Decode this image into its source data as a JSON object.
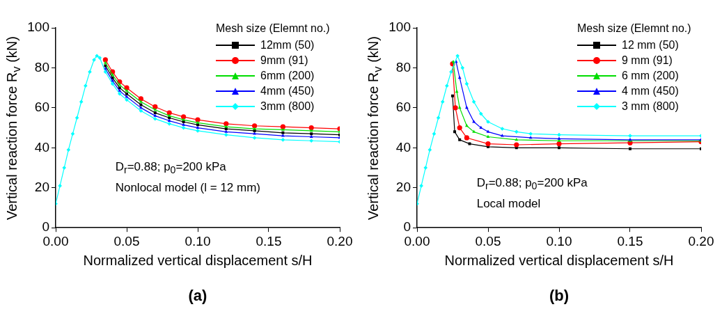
{
  "chart_data": [
    {
      "type": "line",
      "xlabel": "Normalized vertical displacement s/H",
      "ylabel": "Vertical reaction force R$_{v}$ (kN)",
      "legend_title": "Mesh size (Elemnt no.)",
      "legend": "top right",
      "xlim": [
        0,
        0.2
      ],
      "xticks": [
        {
          "value": 0,
          "label": "0.00"
        },
        {
          "value": 0.05,
          "label": "0.05"
        },
        {
          "value": 0.1,
          "label": "0.10"
        },
        {
          "value": 0.15,
          "label": "0.15"
        },
        {
          "value": 0.2,
          "label": "0.20"
        }
      ],
      "ylim": [
        0,
        100
      ],
      "yticks": [
        0,
        20,
        40,
        60,
        80,
        100
      ],
      "annotations": [
        "D$_{r}$=0.88; p$_{0}$=200 kPa",
        "Nonlocal model (l = 12 mm)",
        "(a)"
      ],
      "series": [
        {
          "name": "12mm (50)",
          "color": "#000000",
          "marker": "square",
          "x": [
            0.035,
            0.04,
            0.045,
            0.05,
            0.06,
            0.07,
            0.08,
            0.09,
            0.1,
            0.12,
            0.14,
            0.16,
            0.18,
            0.2
          ],
          "values": [
            81,
            75,
            70,
            67,
            61.5,
            57.5,
            55,
            53,
            51.5,
            49.5,
            48.5,
            47.5,
            47,
            46.5
          ]
        },
        {
          "name": "9mm (91)",
          "color": "#ff0000",
          "marker": "circle",
          "x": [
            0.035,
            0.04,
            0.045,
            0.05,
            0.06,
            0.07,
            0.08,
            0.09,
            0.1,
            0.12,
            0.14,
            0.16,
            0.18,
            0.2
          ],
          "values": [
            84,
            78,
            73,
            70,
            64.5,
            60.5,
            57.5,
            55.5,
            54,
            52,
            51,
            50.5,
            50,
            49.5
          ]
        },
        {
          "name": "6mm (200)",
          "color": "#00dd00",
          "marker": "triangle",
          "x": [
            0.035,
            0.04,
            0.045,
            0.05,
            0.06,
            0.07,
            0.08,
            0.09,
            0.1,
            0.12,
            0.14,
            0.16,
            0.18,
            0.2
          ],
          "values": [
            82.5,
            76.5,
            71.5,
            68.5,
            63,
            59,
            56,
            54,
            52.5,
            50.5,
            49.5,
            49,
            48.5,
            48
          ]
        },
        {
          "name": "4mm (450)",
          "color": "#0000ff",
          "marker": "triangle",
          "x": [
            0.035,
            0.04,
            0.045,
            0.05,
            0.06,
            0.07,
            0.08,
            0.09,
            0.1,
            0.12,
            0.14,
            0.16,
            0.18,
            0.2
          ],
          "values": [
            79.5,
            73.5,
            68.5,
            65.5,
            60,
            56,
            53.5,
            51.5,
            50,
            48,
            47,
            46,
            45.5,
            45
          ]
        },
        {
          "name": "3mm (800)",
          "color": "#00ffff",
          "marker": "diamond",
          "x": [
            0,
            0.003,
            0.006,
            0.009,
            0.012,
            0.015,
            0.018,
            0.021,
            0.024,
            0.027,
            0.029,
            0.031,
            0.035,
            0.04,
            0.045,
            0.05,
            0.06,
            0.07,
            0.08,
            0.09,
            0.1,
            0.12,
            0.14,
            0.16,
            0.18,
            0.2
          ],
          "values": [
            12,
            21,
            30,
            39,
            47,
            55,
            63,
            71,
            78,
            84,
            86,
            85,
            78,
            72,
            67,
            64,
            58.5,
            54.5,
            52,
            50,
            48.5,
            46.5,
            45,
            44,
            43.5,
            43
          ]
        }
      ]
    },
    {
      "type": "line",
      "xlabel": "Normalized vertical displacement s/H",
      "ylabel": "Vertical reaction force R$_{v}$ (kN)",
      "legend_title": "Mesh size (Elemnt no.)",
      "legend": "top right",
      "xlim": [
        0,
        0.2
      ],
      "xticks": [
        {
          "value": 0,
          "label": "0.00"
        },
        {
          "value": 0.05,
          "label": "0.05"
        },
        {
          "value": 0.1,
          "label": "0.10"
        },
        {
          "value": 0.15,
          "label": "0.15"
        },
        {
          "value": 0.2,
          "label": "0.20"
        }
      ],
      "ylim": [
        0,
        100
      ],
      "yticks": [
        0,
        20,
        40,
        60,
        80,
        100
      ],
      "annotations": [
        "D$_{r}$=0.88; p$_{0}$=200 kPa",
        "Local model",
        "(b)"
      ],
      "series": [
        {
          "name": "12 mm (50)",
          "color": "#000000",
          "marker": "square",
          "x": [
            0.025,
            0.0265,
            0.03,
            0.037,
            0.05,
            0.07,
            0.1,
            0.15,
            0.2
          ],
          "values": [
            66,
            48,
            44,
            42,
            40.5,
            40,
            40,
            39.5,
            39.5
          ]
        },
        {
          "name": "9 mm (91)",
          "color": "#ff0000",
          "marker": "circle",
          "x": [
            0.025,
            0.027,
            0.03,
            0.035,
            0.05,
            0.07,
            0.1,
            0.15,
            0.2
          ],
          "values": [
            82,
            60,
            50,
            45,
            42,
            41.5,
            42,
            42.5,
            43
          ]
        },
        {
          "name": "6 mm (200)",
          "color": "#00dd00",
          "marker": "triangle",
          "x": [
            0.0255,
            0.028,
            0.03,
            0.035,
            0.04,
            0.05,
            0.07,
            0.1,
            0.15,
            0.2
          ],
          "values": [
            83,
            68,
            60,
            51,
            48,
            45.5,
            44,
            43.5,
            43.5,
            43.5
          ]
        },
        {
          "name": "4 mm (450)",
          "color": "#0000ff",
          "marker": "triangle",
          "x": [
            0.0275,
            0.03,
            0.035,
            0.04,
            0.045,
            0.05,
            0.06,
            0.08,
            0.1,
            0.15,
            0.2
          ],
          "values": [
            83,
            75,
            60,
            53,
            50,
            48,
            46,
            45,
            44.5,
            44,
            44
          ]
        },
        {
          "name": "3 mm (800)",
          "color": "#00ffff",
          "marker": "diamond",
          "x": [
            0,
            0.003,
            0.006,
            0.009,
            0.012,
            0.015,
            0.018,
            0.021,
            0.024,
            0.0285,
            0.032,
            0.035,
            0.04,
            0.045,
            0.05,
            0.06,
            0.07,
            0.08,
            0.1,
            0.15,
            0.2
          ],
          "values": [
            12,
            21,
            30,
            39,
            47,
            55,
            63,
            71,
            78,
            86,
            80,
            72,
            63,
            57,
            53,
            49.5,
            48,
            47,
            46.5,
            46,
            46
          ]
        }
      ]
    }
  ]
}
